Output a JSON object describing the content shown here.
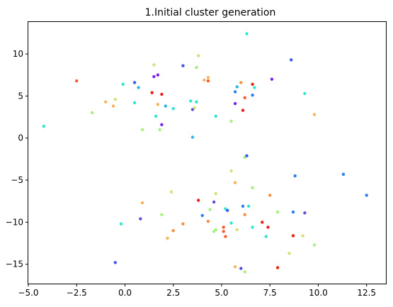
{
  "chart_data": {
    "type": "scatter",
    "title": "1.Initial cluster generation",
    "xlabel": "",
    "ylabel": "",
    "xlim": [
      -5.0,
      13.5
    ],
    "ylim": [
      -17.3,
      13.8
    ],
    "xticks": [
      -5.0,
      -2.5,
      0.0,
      2.5,
      5.0,
      7.5,
      10.0,
      12.5
    ],
    "xtick_labels": [
      "−5.0",
      "−2.5",
      "0.0",
      "2.5",
      "5.0",
      "7.5",
      "10.0",
      "12.5"
    ],
    "yticks": [
      -15,
      -10,
      -5,
      0,
      5,
      10
    ],
    "ytick_labels": [
      "−15",
      "−10",
      "−5",
      "0",
      "5",
      "10"
    ],
    "grid": false,
    "points": [
      {
        "x": -4.2,
        "y": 1.4,
        "color": "#2ce8d0"
      },
      {
        "x": -2.5,
        "y": 6.8,
        "color": "#fd5a2e"
      },
      {
        "x": -1.7,
        "y": 3.0,
        "color": "#a8f07e"
      },
      {
        "x": -1.0,
        "y": 4.3,
        "color": "#f7b25a"
      },
      {
        "x": -0.6,
        "y": 3.8,
        "color": "#f7b25a"
      },
      {
        "x": -0.5,
        "y": 4.6,
        "color": "#d6e07a"
      },
      {
        "x": -0.1,
        "y": 6.4,
        "color": "#2ce8d0"
      },
      {
        "x": 0.5,
        "y": 6.6,
        "color": "#3a58f2"
      },
      {
        "x": 0.5,
        "y": 4.2,
        "color": "#2ce8d0"
      },
      {
        "x": 0.7,
        "y": 6.0,
        "color": "#2ab6e8"
      },
      {
        "x": 0.9,
        "y": 1.0,
        "color": "#a8f07e"
      },
      {
        "x": 1.4,
        "y": 5.4,
        "color": "#ee1e10"
      },
      {
        "x": 1.5,
        "y": 7.3,
        "color": "#7a24f0"
      },
      {
        "x": 1.5,
        "y": 8.7,
        "color": "#d6e07a"
      },
      {
        "x": 1.6,
        "y": 2.6,
        "color": "#2ce8d0"
      },
      {
        "x": 1.7,
        "y": 4.0,
        "color": "#f7b25a"
      },
      {
        "x": 1.7,
        "y": 7.5,
        "color": "#7a24f0"
      },
      {
        "x": 1.8,
        "y": 1.0,
        "color": "#a8f07e"
      },
      {
        "x": 1.9,
        "y": 5.2,
        "color": "#ee1e10"
      },
      {
        "x": 1.9,
        "y": 1.6,
        "color": "#7a24f0"
      },
      {
        "x": 2.1,
        "y": 3.8,
        "color": "#2ab6e8"
      },
      {
        "x": 2.5,
        "y": 3.5,
        "color": "#2ce8d0"
      },
      {
        "x": 3.0,
        "y": 8.6,
        "color": "#3a58f2"
      },
      {
        "x": 3.4,
        "y": 4.4,
        "color": "#2ce8d0"
      },
      {
        "x": 3.5,
        "y": 3.4,
        "color": "#5b4fd6"
      },
      {
        "x": 3.6,
        "y": 3.6,
        "color": "#d6e07a"
      },
      {
        "x": 3.7,
        "y": 8.4,
        "color": "#a8f07e"
      },
      {
        "x": 3.7,
        "y": 4.3,
        "color": "#2ce8d0"
      },
      {
        "x": 3.8,
        "y": 9.8,
        "color": "#d6e07a"
      },
      {
        "x": 3.5,
        "y": 0.1,
        "color": "#2ab6e8"
      },
      {
        "x": 4.1,
        "y": 6.9,
        "color": "#f7b25a"
      },
      {
        "x": 4.3,
        "y": 7.2,
        "color": "#f7b25a"
      },
      {
        "x": 4.3,
        "y": 6.8,
        "color": "#fd5a2e"
      },
      {
        "x": 4.7,
        "y": 2.6,
        "color": "#2ce8d0"
      },
      {
        "x": 5.5,
        "y": 2.0,
        "color": "#a8f07e"
      },
      {
        "x": 5.7,
        "y": 5.5,
        "color": "#2a7ef0"
      },
      {
        "x": 5.8,
        "y": 6.1,
        "color": "#2ab6e8"
      },
      {
        "x": 5.7,
        "y": 4.1,
        "color": "#7a24f0"
      },
      {
        "x": 6.0,
        "y": 6.6,
        "color": "#fd8c3c"
      },
      {
        "x": 6.1,
        "y": 3.3,
        "color": "#ee1e10"
      },
      {
        "x": 6.2,
        "y": 4.8,
        "color": "#fd5a2e"
      },
      {
        "x": 6.3,
        "y": 12.4,
        "color": "#2ce8d0"
      },
      {
        "x": 6.6,
        "y": 5.1,
        "color": "#2a7ef0"
      },
      {
        "x": 6.6,
        "y": 6.4,
        "color": "#ee1e10"
      },
      {
        "x": 6.7,
        "y": 6.0,
        "color": "#2ce8d0"
      },
      {
        "x": 7.6,
        "y": 7.0,
        "color": "#7a24f0"
      },
      {
        "x": 8.6,
        "y": 9.3,
        "color": "#3a58f2"
      },
      {
        "x": 9.3,
        "y": 5.3,
        "color": "#2ce8d0"
      },
      {
        "x": 9.8,
        "y": 2.8,
        "color": "#f7b25a"
      },
      {
        "x": 6.2,
        "y": -2.3,
        "color": "#a8f07e"
      },
      {
        "x": 6.3,
        "y": -2.1,
        "color": "#3a58f2"
      },
      {
        "x": 5.5,
        "y": -3.9,
        "color": "#d6e07a"
      },
      {
        "x": 8.8,
        "y": -4.5,
        "color": "#2a7ef0"
      },
      {
        "x": 11.3,
        "y": -4.3,
        "color": "#2a7ef0"
      },
      {
        "x": 12.5,
        "y": -6.8,
        "color": "#2a7ef0"
      },
      {
        "x": 5.7,
        "y": -5.3,
        "color": "#f7b25a"
      },
      {
        "x": 6.6,
        "y": -5.9,
        "color": "#a8f07e"
      },
      {
        "x": 7.5,
        "y": -6.8,
        "color": "#fd8c3c"
      },
      {
        "x": 4.7,
        "y": -6.6,
        "color": "#d6e07a"
      },
      {
        "x": 2.4,
        "y": -6.4,
        "color": "#d6e07a"
      },
      {
        "x": 0.9,
        "y": -7.7,
        "color": "#f7b25a"
      },
      {
        "x": 3.8,
        "y": -7.4,
        "color": "#ee1e10"
      },
      {
        "x": 4.6,
        "y": -7.6,
        "color": "#5b4fd6"
      },
      {
        "x": 6.1,
        "y": -8.1,
        "color": "#2a7ef0"
      },
      {
        "x": 6.4,
        "y": -8.1,
        "color": "#2ce8d0"
      },
      {
        "x": 5.2,
        "y": -8.4,
        "color": "#2ce8d0"
      },
      {
        "x": 5.3,
        "y": -8.6,
        "color": "#3a58f2"
      },
      {
        "x": 4.4,
        "y": -8.5,
        "color": "#a8f07e"
      },
      {
        "x": 4.0,
        "y": -9.2,
        "color": "#2a7ef0"
      },
      {
        "x": 1.9,
        "y": -9.1,
        "color": "#a8f07e"
      },
      {
        "x": 0.8,
        "y": -9.6,
        "color": "#5b4fd6"
      },
      {
        "x": -0.2,
        "y": -10.2,
        "color": "#2ce8d0"
      },
      {
        "x": 3.0,
        "y": -10.2,
        "color": "#fd8c3c"
      },
      {
        "x": 4.3,
        "y": -9.9,
        "color": "#fd8c3c"
      },
      {
        "x": 5.5,
        "y": -10.1,
        "color": "#2ce8d0"
      },
      {
        "x": 6.2,
        "y": -9.1,
        "color": "#fd8c3c"
      },
      {
        "x": 7.1,
        "y": -10.0,
        "color": "#ee1e10"
      },
      {
        "x": 7.4,
        "y": -10.6,
        "color": "#ee1e10"
      },
      {
        "x": 6.6,
        "y": -10.6,
        "color": "#2ce8d0"
      },
      {
        "x": 5.1,
        "y": -10.6,
        "color": "#fd5a2e"
      },
      {
        "x": 5.1,
        "y": -11.1,
        "color": "#fd5a2e"
      },
      {
        "x": 5.2,
        "y": -11.7,
        "color": "#fd5a2e"
      },
      {
        "x": 4.6,
        "y": -11.1,
        "color": "#a8f07e"
      },
      {
        "x": 4.7,
        "y": -10.9,
        "color": "#a8f07e"
      },
      {
        "x": 5.8,
        "y": -10.9,
        "color": "#d6e07a"
      },
      {
        "x": 2.5,
        "y": -11.0,
        "color": "#fd8c3c"
      },
      {
        "x": 2.2,
        "y": -11.9,
        "color": "#f7b25a"
      },
      {
        "x": 7.3,
        "y": -11.7,
        "color": "#2ce8d0"
      },
      {
        "x": 7.9,
        "y": -8.8,
        "color": "#a8f07e"
      },
      {
        "x": 8.7,
        "y": -8.8,
        "color": "#2a7ef0"
      },
      {
        "x": 9.3,
        "y": -8.9,
        "color": "#5b4fd6"
      },
      {
        "x": 8.7,
        "y": -11.6,
        "color": "#ee1e10"
      },
      {
        "x": 9.2,
        "y": -11.6,
        "color": "#d6e07a"
      },
      {
        "x": 9.8,
        "y": -12.7,
        "color": "#a8f07e"
      },
      {
        "x": 8.5,
        "y": -13.7,
        "color": "#d6e07a"
      },
      {
        "x": -0.5,
        "y": -14.8,
        "color": "#3a58f2"
      },
      {
        "x": 5.7,
        "y": -15.3,
        "color": "#f7b25a"
      },
      {
        "x": 6.0,
        "y": -15.5,
        "color": "#5b4fd6"
      },
      {
        "x": 6.2,
        "y": -15.9,
        "color": "#a8f07e"
      },
      {
        "x": 7.9,
        "y": -15.4,
        "color": "#ee1e10"
      }
    ]
  }
}
